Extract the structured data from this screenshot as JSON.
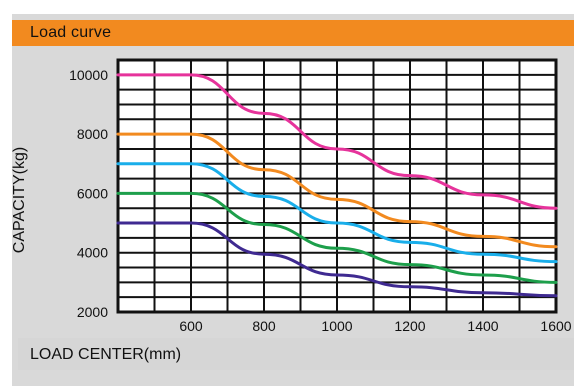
{
  "panel": {
    "title": "Load curve"
  },
  "colors": {
    "header_bg": "#f28a1f",
    "panel_bg": "#d9d9d9",
    "grid": "#111111"
  },
  "chart_data": {
    "type": "line",
    "xlabel": "LOAD CENTER(mm)",
    "ylabel": "CAPACITY(kg)",
    "xlim": [
      400,
      1600
    ],
    "ylim": [
      2000,
      10500
    ],
    "x_ticks": [
      600,
      800,
      1000,
      1200,
      1400,
      1600
    ],
    "y_ticks": [
      2000,
      4000,
      6000,
      8000,
      10000
    ],
    "grid": true,
    "series": [
      {
        "color": "#e6339b",
        "x": [
          400,
          600,
          800,
          1000,
          1200,
          1400,
          1600
        ],
        "y": [
          10000,
          10000,
          8700,
          7500,
          6600,
          5950,
          5500
        ]
      },
      {
        "color": "#f28a1f",
        "x": [
          400,
          600,
          800,
          1000,
          1200,
          1400,
          1600
        ],
        "y": [
          8000,
          8000,
          6800,
          5800,
          5050,
          4550,
          4200
        ]
      },
      {
        "color": "#19aeea",
        "x": [
          400,
          600,
          800,
          1000,
          1200,
          1400,
          1600
        ],
        "y": [
          7000,
          7000,
          5900,
          5000,
          4350,
          3950,
          3700
        ]
      },
      {
        "color": "#1d9f4b",
        "x": [
          400,
          600,
          800,
          1000,
          1200,
          1400,
          1600
        ],
        "y": [
          6000,
          6000,
          4950,
          4150,
          3600,
          3250,
          3000
        ]
      },
      {
        "color": "#3f2a91",
        "x": [
          400,
          600,
          800,
          1000,
          1200,
          1400,
          1600
        ],
        "y": [
          5000,
          5000,
          3950,
          3250,
          2850,
          2650,
          2550
        ]
      }
    ]
  }
}
